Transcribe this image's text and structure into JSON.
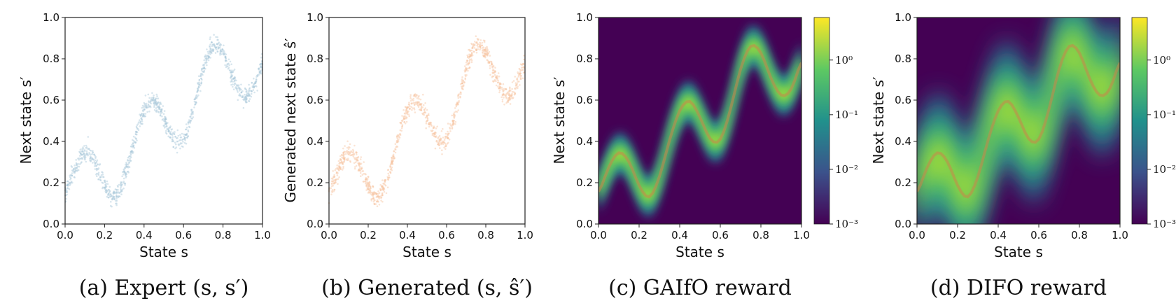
{
  "colors": {
    "expert": "#a9c8d9",
    "generated": "#f6c4a0",
    "viridis_low": "#440154",
    "viridis_mid": "#21918c",
    "viridis_high": "#fde725",
    "ridge": "#c9874a"
  },
  "chart_data": [
    {
      "type": "scatter",
      "caption": "(a) Expert (s, s′)",
      "xlabel": "State s",
      "ylabel": "Next state s′",
      "xlim": [
        0,
        1
      ],
      "ylim": [
        0,
        1
      ],
      "xticks": [
        "0.0",
        "0.2",
        "0.4",
        "0.6",
        "0.8",
        "1.0"
      ],
      "yticks": [
        "0.0",
        "0.2",
        "0.4",
        "0.6",
        "0.8",
        "1.0"
      ],
      "x": [
        0.0,
        0.05,
        0.1,
        0.15,
        0.2,
        0.25,
        0.3,
        0.35,
        0.4,
        0.45,
        0.5,
        0.55,
        0.6,
        0.65,
        0.7,
        0.75,
        0.8,
        0.85,
        0.9,
        0.95,
        1.0
      ],
      "y": [
        0.14,
        0.28,
        0.36,
        0.31,
        0.18,
        0.11,
        0.22,
        0.41,
        0.56,
        0.61,
        0.52,
        0.4,
        0.39,
        0.55,
        0.76,
        0.88,
        0.84,
        0.7,
        0.61,
        0.64,
        0.8
      ]
    },
    {
      "type": "scatter",
      "caption": "(b) Generated (s, ŝ′)",
      "xlabel": "State s",
      "ylabel": "Generated next state ŝ′",
      "xlim": [
        0,
        1
      ],
      "ylim": [
        0,
        1
      ],
      "xticks": [
        "0.0",
        "0.2",
        "0.4",
        "0.6",
        "0.8",
        "1.0"
      ],
      "yticks": [
        "0.0",
        "0.2",
        "0.4",
        "0.6",
        "0.8",
        "1.0"
      ],
      "x": [
        0.0,
        0.05,
        0.1,
        0.15,
        0.2,
        0.25,
        0.3,
        0.35,
        0.4,
        0.45,
        0.5,
        0.55,
        0.6,
        0.65,
        0.7,
        0.75,
        0.8,
        0.85,
        0.9,
        0.95,
        1.0
      ],
      "y": [
        0.14,
        0.28,
        0.36,
        0.31,
        0.18,
        0.11,
        0.22,
        0.41,
        0.56,
        0.61,
        0.52,
        0.4,
        0.39,
        0.55,
        0.76,
        0.88,
        0.84,
        0.7,
        0.61,
        0.64,
        0.8
      ]
    },
    {
      "type": "heatmap",
      "caption": "(c) GAIfO reward",
      "xlabel": "State s",
      "ylabel": "Next state s′",
      "xlim": [
        0,
        1
      ],
      "ylim": [
        0,
        1
      ],
      "xticks": [
        "0.0",
        "0.2",
        "0.4",
        "0.6",
        "0.8",
        "1.0"
      ],
      "yticks": [
        "0.0",
        "0.2",
        "0.4",
        "0.6",
        "0.8",
        "1.0"
      ],
      "colorbar": {
        "scale": "log",
        "ticks": [
          "10⁰",
          "10⁻¹",
          "10⁻²",
          "10⁻³"
        ],
        "tick_values": [
          1,
          0.1,
          0.01,
          0.001
        ]
      },
      "band_halfwidth": 0.1,
      "ridge": [
        0.14,
        0.28,
        0.36,
        0.31,
        0.18,
        0.11,
        0.22,
        0.41,
        0.56,
        0.61,
        0.52,
        0.4,
        0.39,
        0.55,
        0.76,
        0.88,
        0.84,
        0.7,
        0.61,
        0.64,
        0.8
      ]
    },
    {
      "type": "heatmap",
      "caption": "(d) DIFO reward",
      "xlabel": "State s",
      "ylabel": "Next state s′",
      "xlim": [
        0,
        1
      ],
      "ylim": [
        0,
        1
      ],
      "xticks": [
        "0.0",
        "0.2",
        "0.4",
        "0.6",
        "0.8",
        "1.0"
      ],
      "yticks": [
        "0.0",
        "0.2",
        "0.4",
        "0.6",
        "0.8",
        "1.0"
      ],
      "colorbar": {
        "scale": "log",
        "ticks": [
          "10⁰",
          "10⁻¹",
          "10⁻²",
          "10⁻³"
        ],
        "tick_values": [
          1,
          0.1,
          0.01,
          0.001
        ]
      },
      "band_halfwidth": 0.3,
      "ridge": [
        0.14,
        0.28,
        0.36,
        0.31,
        0.18,
        0.11,
        0.22,
        0.41,
        0.56,
        0.61,
        0.52,
        0.4,
        0.39,
        0.55,
        0.76,
        0.88,
        0.84,
        0.7,
        0.61,
        0.64,
        0.8
      ]
    }
  ]
}
